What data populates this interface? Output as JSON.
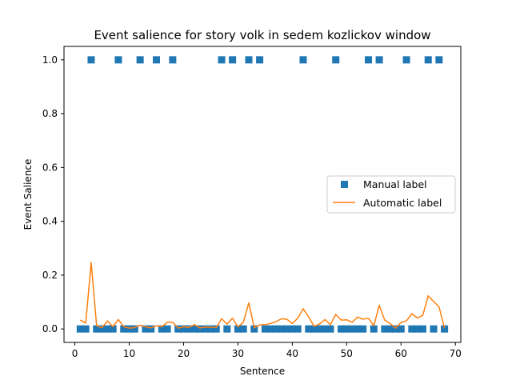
{
  "chart_data": {
    "type": "scatter+line",
    "title": "Event salience for story volk in sedem kozlickov window",
    "xlabel": "Sentence",
    "ylabel": "Event Salience",
    "xlim": [
      -2,
      71
    ],
    "ylim": [
      -0.05,
      1.05
    ],
    "xticks": [
      0,
      10,
      20,
      30,
      40,
      50,
      60,
      70
    ],
    "yticks": [
      0.0,
      0.2,
      0.4,
      0.6,
      0.8,
      1.0
    ],
    "xtick_labels": [
      "0",
      "10",
      "20",
      "30",
      "40",
      "50",
      "60",
      "70"
    ],
    "ytick_labels": [
      "0.0",
      "0.2",
      "0.4",
      "0.6",
      "0.8",
      "1.0"
    ],
    "legend_position": "center-right",
    "grid": false,
    "series": [
      {
        "name": "Manual label",
        "kind": "scatter",
        "marker": "square",
        "color": "#1f77b4",
        "x": [
          1,
          2,
          3,
          4,
          5,
          6,
          7,
          8,
          9,
          10,
          11,
          12,
          13,
          14,
          15,
          16,
          17,
          18,
          19,
          20,
          21,
          22,
          23,
          24,
          25,
          26,
          27,
          28,
          29,
          30,
          31,
          32,
          33,
          34,
          35,
          36,
          37,
          38,
          39,
          40,
          41,
          42,
          43,
          44,
          45,
          46,
          47,
          48,
          49,
          50,
          51,
          52,
          53,
          54,
          55,
          56,
          57,
          58,
          59,
          60,
          61,
          62,
          63,
          64,
          65,
          66,
          67,
          68
        ],
        "y": [
          0,
          0,
          1,
          0,
          0,
          0,
          0,
          1,
          0,
          0,
          0,
          1,
          0,
          0,
          1,
          0,
          0,
          1,
          0,
          0,
          0,
          0,
          0,
          0,
          0,
          0,
          1,
          0,
          1,
          0,
          0,
          1,
          0,
          1,
          0,
          0,
          0,
          0,
          0,
          0,
          0,
          1,
          0,
          0,
          0,
          0,
          0,
          1,
          0,
          0,
          0,
          0,
          0,
          1,
          0,
          1,
          0,
          0,
          0,
          0,
          1,
          0,
          0,
          0,
          1,
          0,
          1,
          0
        ]
      },
      {
        "name": "Automatic label",
        "kind": "line",
        "color": "#ff7f0e",
        "x": [
          1,
          2,
          3,
          4,
          5,
          6,
          7,
          8,
          9,
          10,
          11,
          12,
          13,
          14,
          15,
          16,
          17,
          18,
          19,
          20,
          21,
          22,
          23,
          24,
          25,
          26,
          27,
          28,
          29,
          30,
          31,
          32,
          33,
          34,
          35,
          36,
          37,
          38,
          39,
          40,
          41,
          42,
          43,
          44,
          45,
          46,
          47,
          48,
          49,
          50,
          51,
          52,
          53,
          54,
          55,
          56,
          57,
          58,
          59,
          60,
          61,
          62,
          63,
          64,
          65,
          66,
          67,
          68
        ],
        "y": [
          0.033,
          0.022,
          0.247,
          0.012,
          0.005,
          0.03,
          0.008,
          0.035,
          0.008,
          0.003,
          0.005,
          0.014,
          0.008,
          0.004,
          0.012,
          0.008,
          0.025,
          0.025,
          0.003,
          0.008,
          0.006,
          0.016,
          0.004,
          0.007,
          0.007,
          0.005,
          0.038,
          0.018,
          0.04,
          0.008,
          0.025,
          0.097,
          0.004,
          0.015,
          0.016,
          0.02,
          0.027,
          0.038,
          0.036,
          0.02,
          0.04,
          0.075,
          0.045,
          0.01,
          0.018,
          0.035,
          0.016,
          0.054,
          0.033,
          0.034,
          0.025,
          0.044,
          0.036,
          0.04,
          0.012,
          0.088,
          0.033,
          0.02,
          0.003,
          0.024,
          0.03,
          0.057,
          0.041,
          0.05,
          0.123,
          0.102,
          0.082,
          0.003
        ]
      }
    ]
  }
}
